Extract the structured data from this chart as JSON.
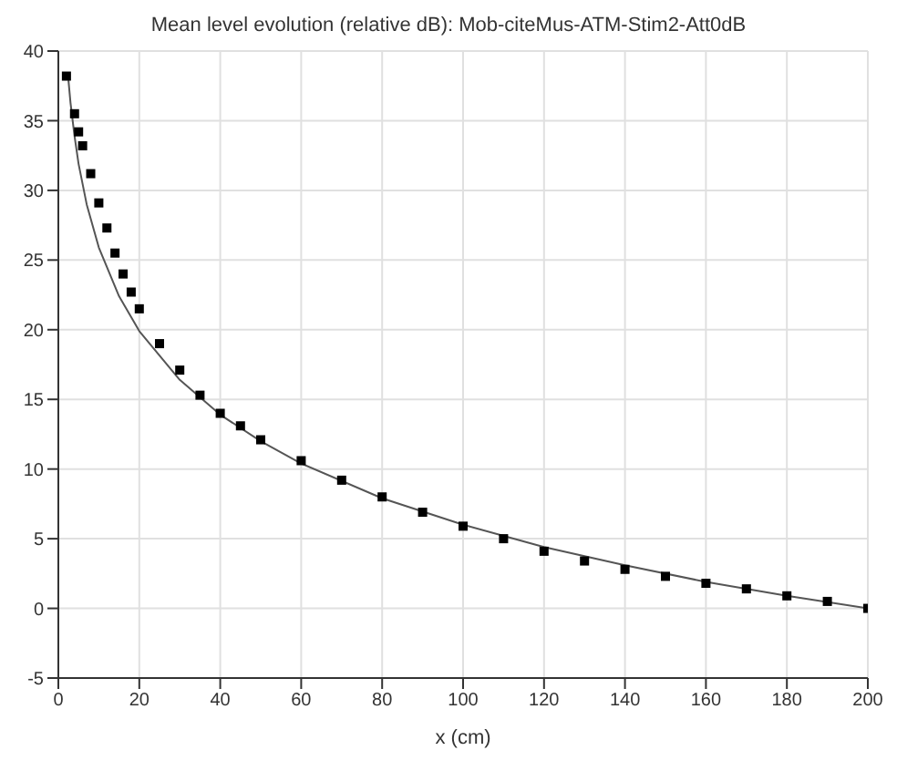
{
  "chart_data": {
    "type": "scatter",
    "title": "Mean level evolution (relative dB): Mob-citeMus-ATM-Stim2-Att0dB",
    "xlabel": "x (cm)",
    "xlim": [
      0,
      200
    ],
    "xticks": [
      0,
      20,
      40,
      60,
      80,
      100,
      120,
      140,
      160,
      180,
      200
    ],
    "ylim": [
      -5,
      40
    ],
    "yticks": [
      -5,
      0,
      5,
      10,
      15,
      20,
      25,
      30,
      35,
      40
    ],
    "grid": true,
    "series": [
      {
        "color": "#000000",
        "marker": "square",
        "x": [
          2,
          4,
          5,
          6,
          8,
          10,
          12,
          14,
          16,
          18,
          20,
          25,
          30,
          35,
          40,
          45,
          50,
          60,
          70,
          80,
          90,
          100,
          110,
          120,
          130,
          140,
          150,
          160,
          170,
          180,
          190,
          200
        ],
        "values": [
          38.2,
          35.5,
          34.2,
          33.2,
          31.2,
          29.1,
          27.3,
          25.5,
          24.0,
          22.7,
          21.5,
          19.0,
          17.1,
          15.3,
          14.0,
          13.1,
          12.1,
          10.6,
          9.2,
          8.0,
          6.9,
          5.9,
          5.0,
          4.1,
          3.4,
          2.8,
          2.3,
          1.8,
          1.4,
          0.9,
          0.5,
          0
        ]
      },
      {
        "type": "line",
        "color": "#555555",
        "marker": "none",
        "x": [
          2.5,
          3,
          4,
          5,
          7,
          10,
          15,
          20,
          30,
          40,
          50,
          60,
          80,
          100,
          120,
          140,
          160,
          180,
          200
        ],
        "values": [
          37.9,
          36.3,
          33.9,
          31.9,
          29.0,
          25.9,
          22.4,
          19.9,
          16.4,
          13.9,
          12.0,
          10.4,
          7.9,
          6.0,
          4.4,
          3.1,
          1.9,
          0.9,
          0
        ]
      }
    ]
  }
}
